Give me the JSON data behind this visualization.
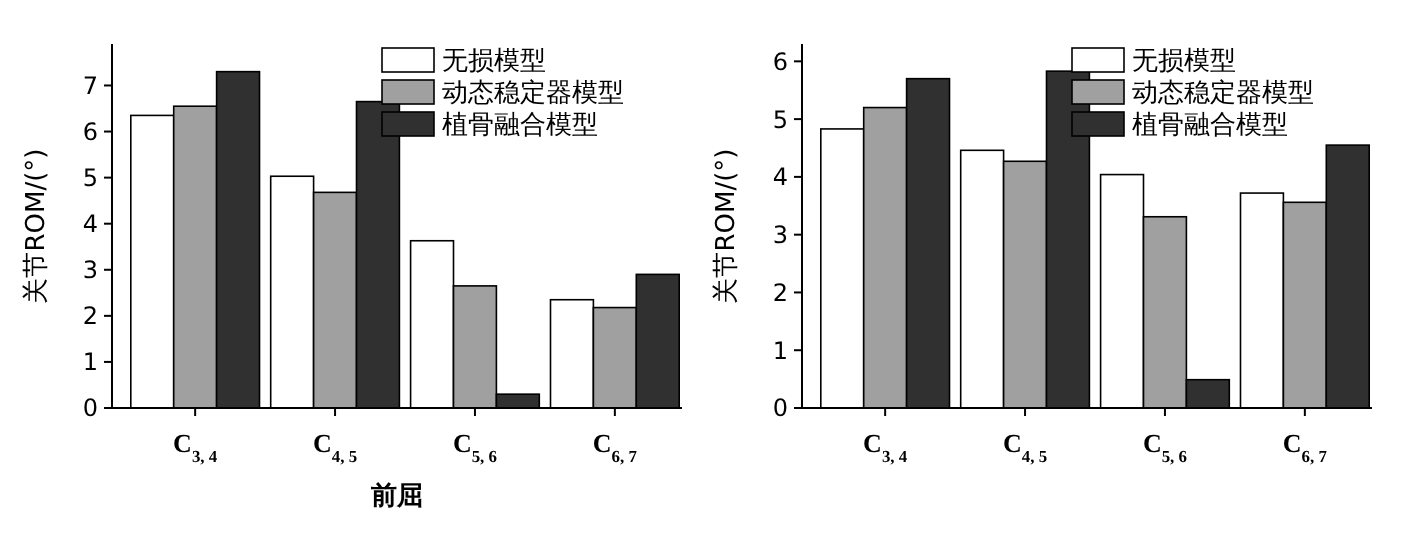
{
  "chart_data": [
    {
      "type": "bar",
      "categories": [
        "C$_{3, 4}$",
        "C$_{4, 5}$",
        "C$_{5, 6}$",
        "C$_{6, 7}$"
      ],
      "xlabel": "前屈",
      "ylabel": "关节ROM/(°)",
      "ylim": [
        0,
        7.9
      ],
      "yticks": [
        0,
        1,
        2,
        3,
        4,
        5,
        6,
        7
      ],
      "legend": "top right",
      "series": [
        {
          "name": "无损模型",
          "color": "#ffffff",
          "values": [
            6.35,
            5.03,
            3.63,
            2.35
          ]
        },
        {
          "name": "动态稳定器模型",
          "color": "#a0a0a0",
          "values": [
            6.55,
            4.68,
            2.65,
            2.18
          ]
        },
        {
          "name": "植骨融合模型",
          "color": "#303030",
          "values": [
            7.3,
            6.65,
            0.3,
            2.9
          ]
        }
      ]
    },
    {
      "type": "bar",
      "categories": [
        "C$_{3, 4}$",
        "C$_{4, 5}$",
        "C$_{5, 6}$",
        "C$_{6, 7}$"
      ],
      "ylabel": "关节ROM/(°)",
      "ylim": [
        0,
        6.3
      ],
      "yticks": [
        0,
        1,
        2,
        3,
        4,
        5,
        6
      ],
      "legend": "top right",
      "series": [
        {
          "name": "无损模型",
          "color": "#ffffff",
          "values": [
            4.83,
            4.46,
            4.04,
            3.72
          ]
        },
        {
          "name": "动态稳定器模型",
          "color": "#a0a0a0",
          "values": [
            5.2,
            4.27,
            3.31,
            3.56
          ]
        },
        {
          "name": "植骨融合模型",
          "color": "#303030",
          "values": [
            5.7,
            5.83,
            0.49,
            4.55
          ]
        }
      ]
    }
  ]
}
